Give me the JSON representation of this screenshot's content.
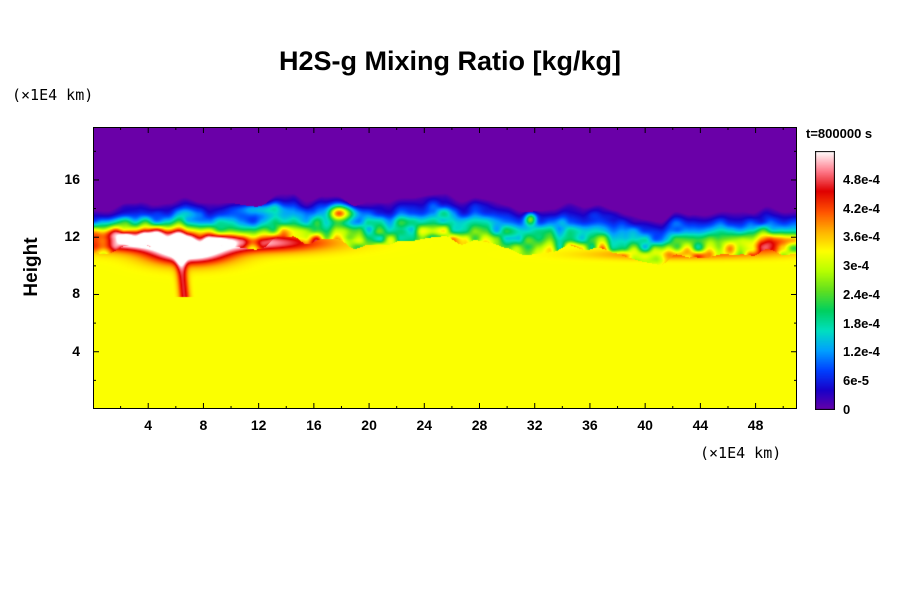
{
  "chart_data": {
    "type": "heatmap",
    "title": "H2S-g Mixing Ratio [kg/kg]",
    "ylabel": "Height",
    "y_unit": "(×1E4 km)",
    "x_unit": "(×1E4 km)",
    "time_label": "t=800000 s",
    "xlim": [
      0,
      51
    ],
    "ylim": [
      0,
      19.7
    ],
    "x_ticks": [
      4,
      8,
      12,
      16,
      20,
      24,
      28,
      32,
      36,
      40,
      44,
      48
    ],
    "y_ticks": [
      4,
      8,
      12,
      16
    ],
    "colorbar": {
      "range": [
        0,
        0.00054
      ],
      "tick_labels": [
        "0",
        "6e-5",
        "1.2e-4",
        "1.8e-4",
        "2.4e-4",
        "3e-4",
        "3.6e-4",
        "4.2e-4",
        "4.8e-4"
      ],
      "tick_values": [
        0,
        6e-05,
        0.00012,
        0.00018,
        0.00024,
        0.0003,
        0.00036,
        0.00042,
        0.00048
      ],
      "colors": [
        "#6a00a8",
        "#1a00c8",
        "#0040ff",
        "#00a0ff",
        "#00e0c0",
        "#00d060",
        "#60e020",
        "#b8ff00",
        "#ffff00",
        "#ffb000",
        "#ff5000",
        "#e00000",
        "#ff7a8a",
        "#ffffff"
      ]
    },
    "field": {
      "background_below_interface": 0.00033,
      "background_above_interface": 0,
      "interface_height": [
        13.4,
        13.7,
        14.2,
        14.3,
        14.2,
        13.9,
        13.8,
        14.3,
        14.5,
        14.3,
        14.0,
        13.9,
        14.2,
        14.4,
        14.1,
        13.8,
        13.5,
        13.6,
        13.8,
        13.5,
        13.2,
        13.0,
        13.1,
        13.4,
        13.6,
        13.4,
        13.1
      ]
    }
  }
}
